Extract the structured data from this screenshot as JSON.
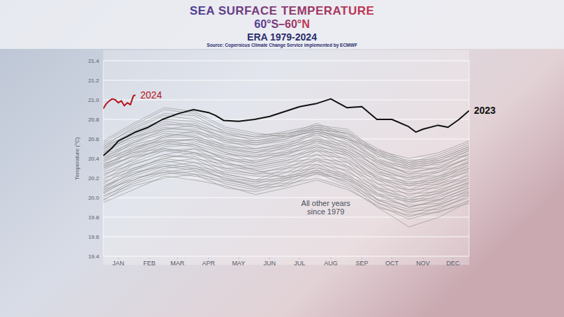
{
  "chart_data": {
    "type": "line",
    "title": "SEA SURFACE TEMPERATURE",
    "subtitle": "60°S–60°N",
    "period": "ERA 1979-2024",
    "source": "Source: Copernicus Climate Change Service implemented by ECMWF",
    "y_label": "Temperature (°C)",
    "xlim": [
      0,
      365
    ],
    "xticks": [
      {
        "value": 15,
        "label": "JAN"
      },
      {
        "value": 46,
        "label": "FEB"
      },
      {
        "value": 74,
        "label": "MAR"
      },
      {
        "value": 105,
        "label": "APR"
      },
      {
        "value": 135,
        "label": "MAY"
      },
      {
        "value": 166,
        "label": "JUN"
      },
      {
        "value": 196,
        "label": "JUL"
      },
      {
        "value": 227,
        "label": "AUG"
      },
      {
        "value": 258,
        "label": "SEP"
      },
      {
        "value": 288,
        "label": "OCT"
      },
      {
        "value": 319,
        "label": "NOV"
      },
      {
        "value": 349,
        "label": "DEC"
      }
    ],
    "ylim": [
      19.4,
      21.4
    ],
    "yticks": [
      19.4,
      19.6,
      19.8,
      {
        "value": 20,
        "label": "20.0"
      },
      20.2,
      20.4,
      20.6,
      20.8,
      {
        "value": 21,
        "label": "21.0"
      },
      21.2,
      21.4
    ],
    "grid": true,
    "annotations": [
      {
        "text": [
          "All other years",
          "since 1979"
        ],
        "x": 222,
        "y": 19.9
      }
    ],
    "x": [
      0,
      30,
      61,
      91,
      122,
      152,
      183,
      213,
      244,
      274,
      305,
      335,
      365
    ],
    "series": [
      {
        "color": "#8e8e8e",
        "values": [
          19.95,
          20.08,
          20.22,
          20.18,
          20.12,
          20.03,
          20.1,
          20.18,
          20.08,
          19.92,
          19.78,
          19.86,
          19.94
        ]
      },
      {
        "color": "#8e8e8e",
        "values": [
          19.98,
          20.12,
          20.2,
          20.24,
          20.1,
          20.06,
          20.14,
          20.2,
          20.1,
          19.9,
          19.82,
          19.85,
          19.97
        ]
      },
      {
        "color": "#8e8e8e",
        "values": [
          19.97,
          20.16,
          20.26,
          20.22,
          20.16,
          20.1,
          20.12,
          20.25,
          20.12,
          19.95,
          19.8,
          19.9,
          20.0
        ]
      },
      {
        "color": "#8e8e8e",
        "values": [
          20.02,
          20.14,
          20.24,
          20.27,
          20.14,
          20.08,
          20.18,
          20.24,
          20.18,
          19.94,
          19.86,
          19.88,
          20.02
        ]
      },
      {
        "color": "#8e8e8e",
        "values": [
          20.0,
          20.18,
          20.28,
          20.24,
          20.18,
          20.12,
          20.15,
          20.28,
          20.14,
          19.98,
          19.84,
          19.93,
          20.03
        ]
      },
      {
        "color": "#8e8e8e",
        "values": [
          20.05,
          20.2,
          20.26,
          20.3,
          20.2,
          20.11,
          20.2,
          20.26,
          20.2,
          19.97,
          19.88,
          19.92,
          20.05
        ]
      },
      {
        "color": "#8e8e8e",
        "values": [
          20.04,
          20.22,
          20.32,
          20.28,
          20.2,
          20.16,
          20.18,
          20.32,
          20.18,
          20.02,
          19.9,
          19.97,
          20.06
        ]
      },
      {
        "color": "#8e8e8e",
        "values": [
          20.08,
          20.18,
          20.3,
          20.33,
          20.18,
          20.14,
          20.22,
          20.28,
          20.22,
          19.98,
          19.92,
          19.94,
          20.08
        ]
      },
      {
        "color": "#8e8e8e",
        "values": [
          20.06,
          20.24,
          20.34,
          20.3,
          20.24,
          20.18,
          20.2,
          20.34,
          20.2,
          20.04,
          19.9,
          19.98,
          20.1
        ]
      },
      {
        "color": "#8e8e8e",
        "values": [
          20.1,
          20.26,
          20.32,
          20.36,
          20.22,
          20.16,
          20.26,
          20.3,
          20.24,
          20.02,
          19.96,
          19.98,
          20.1
        ]
      },
      {
        "color": "#8e8e8e",
        "values": [
          20.08,
          20.28,
          20.38,
          20.32,
          20.26,
          20.22,
          20.22,
          20.38,
          20.22,
          20.08,
          19.94,
          20.02,
          20.12
        ]
      },
      {
        "color": "#8e8e8e",
        "values": [
          20.12,
          20.24,
          20.36,
          20.4,
          20.24,
          20.18,
          20.3,
          20.34,
          20.28,
          20.04,
          19.98,
          20.0,
          20.14
        ]
      },
      {
        "color": "#8e8e8e",
        "values": [
          20.1,
          20.3,
          20.4,
          20.36,
          20.3,
          20.24,
          20.26,
          20.4,
          20.26,
          20.1,
          19.96,
          20.05,
          20.15
        ]
      },
      {
        "color": "#8e8e8e",
        "values": [
          20.16,
          20.28,
          20.42,
          20.42,
          20.28,
          20.24,
          20.32,
          20.38,
          20.32,
          20.08,
          20.0,
          20.04,
          20.16
        ]
      },
      {
        "color": "#8e8e8e",
        "values": [
          20.14,
          20.34,
          20.44,
          20.4,
          20.34,
          20.26,
          20.3,
          20.44,
          20.3,
          20.14,
          19.98,
          20.08,
          20.18
        ]
      },
      {
        "color": "#8e8e8e",
        "values": [
          20.2,
          20.3,
          20.4,
          20.46,
          20.3,
          20.3,
          20.36,
          20.4,
          20.36,
          20.1,
          20.04,
          20.06,
          20.2
        ]
      },
      {
        "color": "#8e8e8e",
        "values": [
          20.18,
          20.36,
          20.48,
          20.44,
          20.36,
          20.28,
          20.34,
          20.48,
          20.32,
          20.18,
          20.02,
          20.12,
          20.2
        ]
      },
      {
        "color": "#8e8e8e",
        "values": [
          20.24,
          20.34,
          20.44,
          20.5,
          20.34,
          20.32,
          20.38,
          20.44,
          20.4,
          20.14,
          20.08,
          20.1,
          20.24
        ]
      },
      {
        "color": "#8e8e8e",
        "values": [
          20.22,
          20.4,
          20.5,
          20.46,
          20.4,
          20.32,
          20.38,
          20.5,
          20.36,
          20.2,
          20.06,
          20.14,
          20.22
        ]
      },
      {
        "color": "#8e8e8e",
        "values": [
          20.26,
          20.38,
          20.52,
          20.54,
          20.38,
          20.36,
          20.42,
          20.48,
          20.44,
          20.18,
          20.12,
          20.14,
          20.28
        ]
      },
      {
        "color": "#8e8e8e",
        "values": [
          20.3,
          20.42,
          20.48,
          20.5,
          20.42,
          20.34,
          20.4,
          20.52,
          20.38,
          20.22,
          20.08,
          20.18,
          20.26
        ]
      },
      {
        "color": "#8e8e8e",
        "values": [
          20.28,
          20.44,
          20.56,
          20.52,
          20.4,
          20.38,
          20.44,
          20.54,
          20.42,
          20.2,
          20.14,
          20.16,
          20.3
        ]
      },
      {
        "color": "#8e8e8e",
        "values": [
          20.32,
          20.42,
          20.54,
          20.56,
          20.46,
          20.36,
          20.46,
          20.52,
          20.46,
          20.26,
          20.12,
          20.2,
          20.3
        ]
      },
      {
        "color": "#8e8e8e",
        "values": [
          20.3,
          20.48,
          20.58,
          20.54,
          20.44,
          20.42,
          20.44,
          20.58,
          20.44,
          20.24,
          20.16,
          20.18,
          20.34
        ]
      },
      {
        "color": "#8e8e8e",
        "values": [
          20.34,
          20.46,
          20.56,
          20.6,
          20.46,
          20.4,
          20.48,
          20.56,
          20.48,
          20.28,
          20.14,
          20.22,
          20.32
        ]
      },
      {
        "color": "#8e8e8e",
        "values": [
          20.32,
          20.5,
          20.6,
          20.58,
          20.5,
          20.44,
          20.46,
          20.6,
          20.46,
          20.26,
          20.2,
          20.2,
          20.36
        ]
      },
      {
        "color": "#8e8e8e",
        "values": [
          20.38,
          20.48,
          20.62,
          20.62,
          20.48,
          20.42,
          20.52,
          20.58,
          20.52,
          20.3,
          20.18,
          20.26,
          20.36
        ]
      },
      {
        "color": "#8e8e8e",
        "values": [
          20.36,
          20.52,
          20.58,
          20.6,
          20.52,
          20.46,
          20.5,
          20.62,
          20.48,
          20.32,
          20.22,
          20.22,
          20.38
        ]
      },
      {
        "color": "#8e8e8e",
        "values": [
          20.4,
          20.5,
          20.64,
          20.64,
          20.5,
          20.46,
          20.54,
          20.6,
          20.54,
          20.3,
          20.2,
          20.28,
          20.4
        ]
      },
      {
        "color": "#8e8e8e",
        "values": [
          20.38,
          20.56,
          20.66,
          20.62,
          20.54,
          20.48,
          20.52,
          20.66,
          20.5,
          20.36,
          20.24,
          20.26,
          20.42
        ]
      },
      {
        "color": "#8e8e8e",
        "values": [
          20.42,
          20.54,
          20.62,
          20.68,
          20.52,
          20.5,
          20.56,
          20.64,
          20.56,
          20.34,
          20.26,
          20.3,
          20.4
        ]
      },
      {
        "color": "#8e8e8e",
        "values": [
          20.4,
          20.58,
          20.68,
          20.66,
          20.58,
          20.5,
          20.54,
          20.68,
          20.54,
          20.38,
          20.24,
          20.32,
          20.44
        ]
      },
      {
        "color": "#8e8e8e",
        "values": [
          20.44,
          20.56,
          20.7,
          20.7,
          20.56,
          20.54,
          20.58,
          20.66,
          20.6,
          20.36,
          20.3,
          20.3,
          20.46
        ]
      },
      {
        "color": "#8e8e8e",
        "values": [
          20.46,
          20.6,
          20.72,
          20.68,
          20.6,
          20.54,
          20.6,
          20.7,
          20.58,
          20.4,
          20.28,
          20.36,
          20.44
        ]
      },
      {
        "color": "#8e8e8e",
        "values": [
          20.48,
          20.62,
          20.7,
          20.74,
          20.58,
          20.56,
          20.62,
          20.68,
          20.62,
          20.38,
          20.32,
          20.34,
          20.48
        ]
      },
      {
        "color": "#8e8e8e",
        "values": [
          20.46,
          20.64,
          20.76,
          20.72,
          20.62,
          20.56,
          20.6,
          20.72,
          20.6,
          20.44,
          20.3,
          20.38,
          20.5
        ]
      },
      {
        "color": "#8e8e8e",
        "values": [
          20.5,
          20.62,
          20.74,
          20.76,
          20.6,
          20.58,
          20.64,
          20.7,
          20.66,
          20.42,
          20.34,
          20.36,
          20.48
        ]
      },
      {
        "color": "#8e8e8e",
        "values": [
          20.52,
          20.66,
          20.78,
          20.74,
          20.66,
          20.58,
          20.62,
          20.74,
          20.62,
          20.46,
          20.32,
          20.4,
          20.52
        ]
      },
      {
        "color": "#8e8e8e",
        "values": [
          20.5,
          20.68,
          20.8,
          20.78,
          20.64,
          20.6,
          20.66,
          20.72,
          20.68,
          20.44,
          20.36,
          20.38,
          20.5
        ]
      },
      {
        "color": "#8e8e8e",
        "values": [
          20.54,
          20.7,
          20.84,
          20.8,
          20.68,
          20.62,
          20.64,
          20.76,
          20.64,
          20.48,
          20.34,
          20.42,
          20.54
        ]
      },
      {
        "color": "#8e8e8e",
        "values": [
          20.52,
          20.72,
          20.86,
          20.84,
          20.66,
          20.62,
          20.68,
          20.74,
          20.7,
          20.46,
          20.38,
          20.4,
          20.52
        ]
      },
      {
        "color": "#8e8e8e",
        "values": [
          20.56,
          20.74,
          20.9,
          20.86,
          20.7,
          20.64,
          20.66,
          20.7,
          20.66,
          20.5,
          20.36,
          20.44,
          20.56
        ]
      },
      {
        "color": "#8e8e8e",
        "values": [
          20.58,
          20.76,
          20.92,
          20.88,
          20.72,
          20.66,
          20.62,
          20.68,
          20.6,
          20.48,
          20.4,
          20.46,
          20.58
        ]
      },
      {
        "color": "#8e8e8e",
        "values": [
          20.34,
          20.46,
          20.5,
          20.46,
          20.36,
          20.28,
          20.2,
          20.26,
          20.16,
          19.9,
          19.7,
          19.8,
          19.96
        ]
      },
      {
        "name": "2023",
        "color": "#111111",
        "x": [
          0,
          8,
          15,
          23,
          32,
          45,
          59,
          75,
          90,
          105,
          112,
          120,
          135,
          151,
          166,
          181,
          196,
          212,
          227,
          243,
          258,
          273,
          288,
          304,
          312,
          319,
          334,
          344,
          355,
          365
        ],
        "values": [
          20.43,
          20.5,
          20.58,
          20.62,
          20.67,
          20.72,
          20.8,
          20.86,
          20.9,
          20.87,
          20.84,
          20.79,
          20.78,
          20.8,
          20.83,
          20.88,
          20.93,
          20.96,
          21.01,
          20.92,
          20.93,
          20.8,
          20.8,
          20.73,
          20.67,
          20.7,
          20.74,
          20.72,
          20.8,
          20.89
        ]
      },
      {
        "name": "2024",
        "color": "#b5121b",
        "x": [
          0,
          3,
          6,
          9,
          12,
          15,
          18,
          21,
          24,
          27,
          30,
          32
        ],
        "values": [
          20.91,
          20.96,
          20.99,
          21.01,
          21.0,
          20.97,
          20.99,
          20.94,
          20.97,
          20.95,
          21.04,
          21.05
        ]
      }
    ]
  }
}
